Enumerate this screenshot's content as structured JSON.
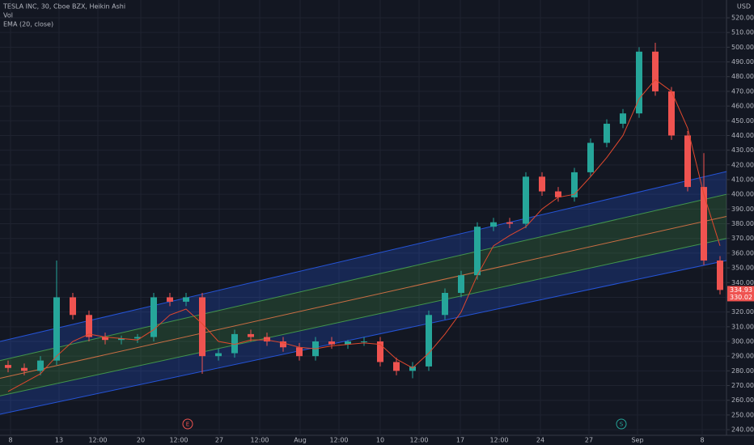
{
  "chart_data": {
    "type": "candlestick",
    "title": "TESLA INC, 30, Cboe BZX, Heikin Ashi",
    "indicators": [
      "Vol",
      "EMA (20, close)"
    ],
    "currency": "USD",
    "up_color": "#26a69a",
    "down_color": "#ef5350",
    "ema_color": "#e0482e",
    "x": [
      5,
      15,
      25,
      35,
      45,
      55,
      65,
      75,
      85,
      95,
      105,
      115,
      125,
      135,
      145,
      155,
      165,
      175,
      185,
      195,
      205,
      215,
      225,
      235,
      245,
      255,
      265,
      275,
      285,
      295,
      305,
      315,
      325,
      335,
      345,
      355,
      365,
      375,
      385,
      395,
      405,
      415,
      425,
      435,
      445
    ],
    "open": [
      284,
      282,
      280,
      287,
      330,
      318,
      303,
      301,
      302,
      303,
      330,
      327,
      330,
      290,
      292,
      305,
      303,
      300,
      296,
      290,
      300,
      298,
      300,
      300,
      286,
      280,
      283,
      318,
      333,
      345,
      378,
      381,
      380,
      412,
      402,
      398,
      415,
      435,
      448,
      455,
      497,
      470,
      440,
      405,
      355
    ],
    "high": [
      287,
      285,
      290,
      355,
      333,
      321,
      306,
      304,
      305,
      333,
      333,
      333,
      333,
      295,
      308,
      308,
      306,
      303,
      299,
      303,
      303,
      301,
      303,
      303,
      289,
      286,
      321,
      336,
      348,
      381,
      384,
      384,
      415,
      415,
      405,
      418,
      438,
      451,
      458,
      500,
      503,
      473,
      443,
      428,
      358
    ],
    "low": [
      279,
      277,
      277,
      284,
      315,
      300,
      298,
      298,
      299,
      300,
      324,
      324,
      278,
      287,
      289,
      300,
      297,
      293,
      287,
      287,
      295,
      295,
      297,
      283,
      277,
      275,
      280,
      315,
      330,
      342,
      375,
      377,
      377,
      399,
      395,
      395,
      412,
      432,
      445,
      452,
      467,
      437,
      402,
      352,
      332
    ],
    "close": [
      282,
      280,
      287,
      330,
      318,
      303,
      301,
      302,
      303,
      330,
      327,
      330,
      290,
      292,
      305,
      303,
      300,
      296,
      290,
      300,
      298,
      300,
      300,
      286,
      280,
      283,
      318,
      333,
      345,
      378,
      381,
      380,
      412,
      402,
      398,
      415,
      435,
      448,
      455,
      497,
      470,
      440,
      405,
      355,
      335
    ],
    "ema": [
      266,
      272,
      278,
      290,
      300,
      305,
      303,
      302,
      301,
      308,
      318,
      322,
      312,
      300,
      298,
      301,
      301,
      299,
      296,
      295,
      297,
      298,
      299,
      298,
      288,
      282,
      292,
      305,
      320,
      345,
      365,
      372,
      378,
      390,
      398,
      400,
      412,
      425,
      440,
      465,
      478,
      470,
      445,
      400,
      365
    ],
    "channel_lines": [
      {
        "color": "#2962ff",
        "values": [
          300,
          415.5
        ]
      },
      {
        "color": "#4caf50",
        "values": [
          287,
          400
        ]
      },
      {
        "color": "#f57c4a",
        "values": [
          275,
          385
        ]
      },
      {
        "color": "#4caf50",
        "values": [
          263,
          370
        ]
      },
      {
        "color": "#2962ff",
        "values": [
          250.5,
          355
        ]
      }
    ],
    "price_labels": [
      334.93,
      330.02
    ],
    "events": [
      {
        "label": "E",
        "x": 116,
        "color": "#ef5350"
      },
      {
        "label": "S",
        "x": 384,
        "color": "#26a69a"
      }
    ],
    "xlim": [
      0,
      449
    ],
    "ylim": [
      236.2,
      532.1
    ],
    "xticks": [
      {
        "value": 6.5,
        "label": "8"
      },
      {
        "value": 36.5,
        "label": "13"
      },
      {
        "value": 60.5,
        "label": "12:00"
      },
      {
        "value": 87,
        "label": "20"
      },
      {
        "value": 110.5,
        "label": "12:00"
      },
      {
        "value": 135.5,
        "label": "27"
      },
      {
        "value": 160.5,
        "label": "12:00"
      },
      {
        "value": 185.5,
        "label": "Aug"
      },
      {
        "value": 209.5,
        "label": "12:00"
      },
      {
        "value": 235,
        "label": "10"
      },
      {
        "value": 259,
        "label": "12:00"
      },
      {
        "value": 284.5,
        "label": "17"
      },
      {
        "value": 308.5,
        "label": "12:00"
      },
      {
        "value": 334,
        "label": "24"
      },
      {
        "value": 364,
        "label": "27"
      },
      {
        "value": 394,
        "label": "Sep"
      },
      {
        "value": 434,
        "label": "8"
      }
    ],
    "yticks": [
      {
        "value": 240,
        "label": "240.00"
      },
      {
        "value": 250,
        "label": "250.00"
      },
      {
        "value": 260,
        "label": "260.00"
      },
      {
        "value": 270,
        "label": "270.00"
      },
      {
        "value": 280,
        "label": "280.00"
      },
      {
        "value": 290,
        "label": "290.00"
      },
      {
        "value": 300,
        "label": "300.00"
      },
      {
        "value": 310,
        "label": "310.00"
      },
      {
        "value": 320,
        "label": "320.00"
      },
      {
        "value": 330,
        "label": "330.00"
      },
      {
        "value": 340,
        "label": "340.00"
      },
      {
        "value": 350,
        "label": "350.00"
      },
      {
        "value": 360,
        "label": "360.00"
      },
      {
        "value": 370,
        "label": "370.00"
      },
      {
        "value": 380,
        "label": "380.00"
      },
      {
        "value": 390,
        "label": "390.00"
      },
      {
        "value": 400,
        "label": "400.00"
      },
      {
        "value": 410,
        "label": "410.00"
      },
      {
        "value": 420,
        "label": "420.00"
      },
      {
        "value": 430,
        "label": "430.00"
      },
      {
        "value": 440,
        "label": "440.00"
      },
      {
        "value": 450,
        "label": "450.00"
      },
      {
        "value": 460,
        "label": "460.00"
      },
      {
        "value": 470,
        "label": "470.00"
      },
      {
        "value": 480,
        "label": "480.00"
      },
      {
        "value": 490,
        "label": "490.00"
      },
      {
        "value": 500,
        "label": "500.00"
      },
      {
        "value": 510,
        "label": "510.00"
      },
      {
        "value": 520,
        "label": "520.00"
      }
    ],
    "grid": true
  }
}
